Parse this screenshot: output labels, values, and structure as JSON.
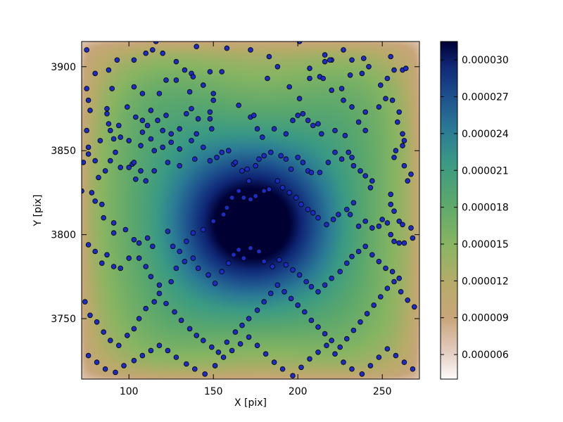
{
  "chart_data": {
    "type": "heatmap",
    "title": "",
    "xlabel": "X [pix]",
    "ylabel": "Y [pix]",
    "xlim": [
      72,
      272
    ],
    "ylim": [
      3714,
      3915
    ],
    "xticks": [
      100,
      150,
      200,
      250
    ],
    "yticks": [
      3750,
      3800,
      3850,
      3900
    ],
    "xtick_labels": [
      "100",
      "150",
      "200",
      "250"
    ],
    "ytick_labels": [
      "3750",
      "3800",
      "3850",
      "3900"
    ],
    "colorbar": {
      "range": [
        4e-06,
        3.15e-05
      ],
      "ticks": [
        6e-06,
        9e-06,
        1.2e-05,
        1.5e-05,
        1.8e-05,
        2.1e-05,
        2.4e-05,
        2.7e-05,
        3e-05
      ],
      "tick_labels": [
        "0.000006",
        "0.000009",
        "0.000012",
        "0.000015",
        "0.000018",
        "0.000021",
        "0.000024",
        "0.000027",
        "0.000030"
      ],
      "colormap": "gist_earth_r"
    },
    "heatmap": {
      "peak": [
        171,
        3806
      ],
      "edge_value_approx": 4e-06,
      "center_value_approx": 3.15e-05
    },
    "grid": false,
    "points_style": {
      "fill": "#1c2bc4",
      "stroke": "#000000"
    },
    "points": [
      [
        75,
        3910
      ],
      [
        80,
        3896
      ],
      [
        88,
        3898
      ],
      [
        93,
        3904
      ],
      [
        103,
        3904
      ],
      [
        110,
        3908
      ],
      [
        114,
        3910
      ],
      [
        116,
        3915
      ],
      [
        120,
        3908
      ],
      [
        128,
        3903
      ],
      [
        140,
        3912
      ],
      [
        133,
        3898
      ],
      [
        137,
        3896
      ],
      [
        148,
        3897
      ],
      [
        158,
        3911
      ],
      [
        172,
        3910
      ],
      [
        183,
        3906
      ],
      [
        188,
        3900
      ],
      [
        201,
        3915
      ],
      [
        216,
        3907
      ],
      [
        220,
        3904
      ],
      [
        227,
        3910
      ],
      [
        232,
        3904
      ],
      [
        239,
        3905
      ],
      [
        255,
        3906
      ],
      [
        257,
        3898
      ],
      [
        262,
        3898
      ],
      [
        264,
        3899
      ],
      [
        75,
        3887
      ],
      [
        76,
        3880
      ],
      [
        77,
        3874
      ],
      [
        87,
        3875
      ],
      [
        87,
        3872
      ],
      [
        88,
        3866
      ],
      [
        90,
        3887
      ],
      [
        103,
        3888
      ],
      [
        108,
        3884
      ],
      [
        118,
        3884
      ],
      [
        122,
        3892
      ],
      [
        128,
        3892
      ],
      [
        136,
        3885
      ],
      [
        138,
        3894
      ],
      [
        144,
        3889
      ],
      [
        150,
        3884
      ],
      [
        150,
        3880
      ],
      [
        148,
        3873
      ],
      [
        137,
        3875
      ],
      [
        155,
        3897
      ],
      [
        182,
        3893
      ],
      [
        195,
        3888
      ],
      [
        201,
        3881
      ],
      [
        207,
        3893
      ],
      [
        207,
        3899
      ],
      [
        213,
        3894
      ],
      [
        216,
        3903
      ],
      [
        219,
        3904
      ],
      [
        215,
        3893
      ],
      [
        220,
        3886
      ],
      [
        226,
        3887
      ],
      [
        227,
        3880
      ],
      [
        231,
        3895
      ],
      [
        238,
        3896
      ],
      [
        242,
        3900
      ],
      [
        249,
        3889
      ],
      [
        253,
        3893
      ],
      [
        252,
        3881
      ],
      [
        75,
        3862
      ],
      [
        76,
        3852
      ],
      [
        83,
        3856
      ],
      [
        89,
        3862
      ],
      [
        94,
        3865
      ],
      [
        99,
        3876
      ],
      [
        104,
        3870
      ],
      [
        108,
        3868
      ],
      [
        111,
        3865
      ],
      [
        117,
        3868
      ],
      [
        120,
        3862
      ],
      [
        122,
        3871
      ],
      [
        113,
        3874
      ],
      [
        130,
        3863
      ],
      [
        134,
        3872
      ],
      [
        141,
        3869
      ],
      [
        148,
        3869
      ],
      [
        149,
        3863
      ],
      [
        140,
        3860
      ],
      [
        137,
        3856
      ],
      [
        130,
        3851
      ],
      [
        125,
        3855
      ],
      [
        120,
        3852
      ],
      [
        125,
        3860
      ],
      [
        113,
        3857
      ],
      [
        115,
        3850
      ],
      [
        107,
        3853
      ],
      [
        100,
        3856
      ],
      [
        95,
        3858
      ],
      [
        91,
        3857
      ],
      [
        108,
        3861
      ],
      [
        165,
        3877
      ],
      [
        172,
        3870
      ],
      [
        174,
        3871
      ],
      [
        176,
        3863
      ],
      [
        179,
        3858
      ],
      [
        186,
        3863
      ],
      [
        193,
        3860
      ],
      [
        197,
        3868
      ],
      [
        200,
        3871
      ],
      [
        203,
        3872
      ],
      [
        206,
        3868
      ],
      [
        209,
        3865
      ],
      [
        212,
        3866
      ],
      [
        214,
        3860
      ],
      [
        222,
        3862
      ],
      [
        228,
        3859
      ],
      [
        232,
        3876
      ],
      [
        236,
        3867
      ],
      [
        240,
        3862
      ],
      [
        240,
        3873
      ],
      [
        248,
        3876
      ],
      [
        256,
        3880
      ],
      [
        260,
        3873
      ],
      [
        259,
        3867
      ],
      [
        262,
        3860
      ],
      [
        263,
        3856
      ],
      [
        262,
        3853
      ],
      [
        258,
        3850
      ],
      [
        257,
        3846
      ],
      [
        263,
        3841
      ],
      [
        267,
        3836
      ],
      [
        265,
        3832
      ],
      [
        73,
        3843
      ],
      [
        76,
        3848
      ],
      [
        80,
        3844
      ],
      [
        82,
        3834
      ],
      [
        86,
        3838
      ],
      [
        89,
        3844
      ],
      [
        92,
        3849
      ],
      [
        95,
        3840
      ],
      [
        100,
        3840
      ],
      [
        102,
        3842
      ],
      [
        103,
        3843
      ],
      [
        107,
        3838
      ],
      [
        104,
        3833
      ],
      [
        110,
        3832
      ],
      [
        115,
        3838
      ],
      [
        123,
        3843
      ],
      [
        130,
        3841
      ],
      [
        139,
        3845
      ],
      [
        144,
        3852
      ],
      [
        148,
        3844
      ],
      [
        152,
        3846
      ],
      [
        155,
        3849
      ],
      [
        159,
        3850
      ],
      [
        162,
        3842
      ],
      [
        163,
        3843
      ],
      [
        167,
        3838
      ],
      [
        170,
        3839
      ],
      [
        171,
        3832
      ],
      [
        175,
        3841
      ],
      [
        177,
        3845
      ],
      [
        180,
        3847
      ],
      [
        184,
        3849
      ],
      [
        190,
        3847
      ],
      [
        193,
        3845
      ],
      [
        196,
        3839
      ],
      [
        200,
        3846
      ],
      [
        203,
        3843
      ],
      [
        206,
        3838
      ],
      [
        208,
        3837
      ],
      [
        213,
        3837
      ],
      [
        218,
        3843
      ],
      [
        222,
        3849
      ],
      [
        226,
        3845
      ],
      [
        230,
        3849
      ],
      [
        232,
        3846
      ],
      [
        233,
        3841
      ],
      [
        237,
        3838
      ],
      [
        240,
        3835
      ],
      [
        244,
        3832
      ],
      [
        243,
        3828
      ],
      [
        255,
        3824
      ],
      [
        255,
        3818
      ],
      [
        257,
        3814
      ],
      [
        260,
        3808
      ],
      [
        262,
        3806
      ],
      [
        267,
        3804
      ],
      [
        72,
        3826
      ],
      [
        78,
        3825
      ],
      [
        80,
        3820
      ],
      [
        84,
        3818
      ],
      [
        85,
        3810
      ],
      [
        91,
        3807
      ],
      [
        91,
        3801
      ],
      [
        98,
        3803
      ],
      [
        103,
        3797
      ],
      [
        106,
        3795
      ],
      [
        111,
        3798
      ],
      [
        114,
        3793
      ],
      [
        123,
        3802
      ],
      [
        126,
        3793
      ],
      [
        130,
        3790
      ],
      [
        134,
        3796
      ],
      [
        138,
        3801
      ],
      [
        144,
        3803
      ],
      [
        150,
        3808
      ],
      [
        156,
        3812
      ],
      [
        158,
        3816
      ],
      [
        161,
        3822
      ],
      [
        165,
        3826
      ],
      [
        168,
        3822
      ],
      [
        172,
        3821
      ],
      [
        175,
        3823
      ],
      [
        180,
        3826
      ],
      [
        183,
        3827
      ],
      [
        188,
        3832
      ],
      [
        191,
        3828
      ],
      [
        195,
        3825
      ],
      [
        199,
        3822
      ],
      [
        202,
        3818
      ],
      [
        206,
        3815
      ],
      [
        209,
        3813
      ],
      [
        212,
        3810
      ],
      [
        217,
        3806
      ],
      [
        221,
        3809
      ],
      [
        224,
        3812
      ],
      [
        229,
        3815
      ],
      [
        231,
        3812
      ],
      [
        233,
        3819
      ],
      [
        236,
        3805
      ],
      [
        240,
        3808
      ],
      [
        244,
        3804
      ],
      [
        248,
        3805
      ],
      [
        250,
        3809
      ],
      [
        253,
        3807
      ],
      [
        255,
        3800
      ],
      [
        257,
        3796
      ],
      [
        260,
        3795
      ],
      [
        263,
        3795
      ],
      [
        268,
        3798
      ],
      [
        76,
        3794
      ],
      [
        80,
        3790
      ],
      [
        84,
        3783
      ],
      [
        87,
        3788
      ],
      [
        91,
        3781
      ],
      [
        95,
        3780
      ],
      [
        100,
        3786
      ],
      [
        106,
        3786
      ],
      [
        110,
        3781
      ],
      [
        113,
        3775
      ],
      [
        118,
        3770
      ],
      [
        125,
        3772
      ],
      [
        128,
        3780
      ],
      [
        133,
        3784
      ],
      [
        138,
        3786
      ],
      [
        141,
        3780
      ],
      [
        147,
        3776
      ],
      [
        151,
        3771
      ],
      [
        155,
        3778
      ],
      [
        159,
        3783
      ],
      [
        162,
        3788
      ],
      [
        165,
        3791
      ],
      [
        168,
        3786
      ],
      [
        172,
        3792
      ],
      [
        177,
        3790
      ],
      [
        180,
        3784
      ],
      [
        185,
        3781
      ],
      [
        189,
        3785
      ],
      [
        193,
        3782
      ],
      [
        197,
        3779
      ],
      [
        201,
        3776
      ],
      [
        205,
        3772
      ],
      [
        208,
        3769
      ],
      [
        212,
        3766
      ],
      [
        216,
        3770
      ],
      [
        220,
        3774
      ],
      [
        225,
        3778
      ],
      [
        229,
        3783
      ],
      [
        232,
        3787
      ],
      [
        236,
        3790
      ],
      [
        240,
        3793
      ],
      [
        244,
        3788
      ],
      [
        248,
        3784
      ],
      [
        252,
        3780
      ],
      [
        256,
        3778
      ],
      [
        260,
        3774
      ],
      [
        74,
        3760
      ],
      [
        77,
        3752
      ],
      [
        81,
        3748
      ],
      [
        85,
        3742
      ],
      [
        89,
        3737
      ],
      [
        94,
        3734
      ],
      [
        99,
        3740
      ],
      [
        103,
        3744
      ],
      [
        106,
        3750
      ],
      [
        110,
        3756
      ],
      [
        115,
        3760
      ],
      [
        118,
        3765
      ],
      [
        122,
        3759
      ],
      [
        127,
        3754
      ],
      [
        131,
        3749
      ],
      [
        136,
        3744
      ],
      [
        140,
        3740
      ],
      [
        144,
        3737
      ],
      [
        149,
        3733
      ],
      [
        153,
        3730
      ],
      [
        158,
        3736
      ],
      [
        163,
        3742
      ],
      [
        167,
        3746
      ],
      [
        171,
        3750
      ],
      [
        176,
        3755
      ],
      [
        180,
        3760
      ],
      [
        184,
        3765
      ],
      [
        188,
        3770
      ],
      [
        192,
        3766
      ],
      [
        196,
        3762
      ],
      [
        200,
        3758
      ],
      [
        204,
        3754
      ],
      [
        208,
        3749
      ],
      [
        212,
        3745
      ],
      [
        216,
        3741
      ],
      [
        220,
        3737
      ],
      [
        225,
        3733
      ],
      [
        229,
        3738
      ],
      [
        233,
        3743
      ],
      [
        237,
        3748
      ],
      [
        241,
        3753
      ],
      [
        245,
        3758
      ],
      [
        249,
        3763
      ],
      [
        253,
        3768
      ],
      [
        257,
        3772
      ],
      [
        261,
        3766
      ],
      [
        265,
        3761
      ],
      [
        269,
        3757
      ],
      [
        76,
        3728
      ],
      [
        81,
        3724
      ],
      [
        86,
        3720
      ],
      [
        92,
        3718
      ],
      [
        97,
        3722
      ],
      [
        103,
        3725
      ],
      [
        108,
        3728
      ],
      [
        113,
        3731
      ],
      [
        118,
        3734
      ],
      [
        123,
        3731
      ],
      [
        128,
        3727
      ],
      [
        134,
        3723
      ],
      [
        139,
        3720
      ],
      [
        145,
        3717
      ],
      [
        151,
        3722
      ],
      [
        156,
        3727
      ],
      [
        161,
        3731
      ],
      [
        166,
        3735
      ],
      [
        171,
        3739
      ],
      [
        176,
        3734
      ],
      [
        181,
        3729
      ],
      [
        186,
        3724
      ],
      [
        191,
        3720
      ],
      [
        197,
        3716
      ],
      [
        202,
        3721
      ],
      [
        207,
        3726
      ],
      [
        212,
        3730
      ],
      [
        217,
        3734
      ],
      [
        222,
        3729
      ],
      [
        227,
        3724
      ],
      [
        232,
        3720
      ],
      [
        238,
        3717
      ],
      [
        243,
        3722
      ],
      [
        248,
        3727
      ],
      [
        253,
        3732
      ],
      [
        258,
        3728
      ],
      [
        263,
        3724
      ],
      [
        268,
        3720
      ]
    ]
  }
}
